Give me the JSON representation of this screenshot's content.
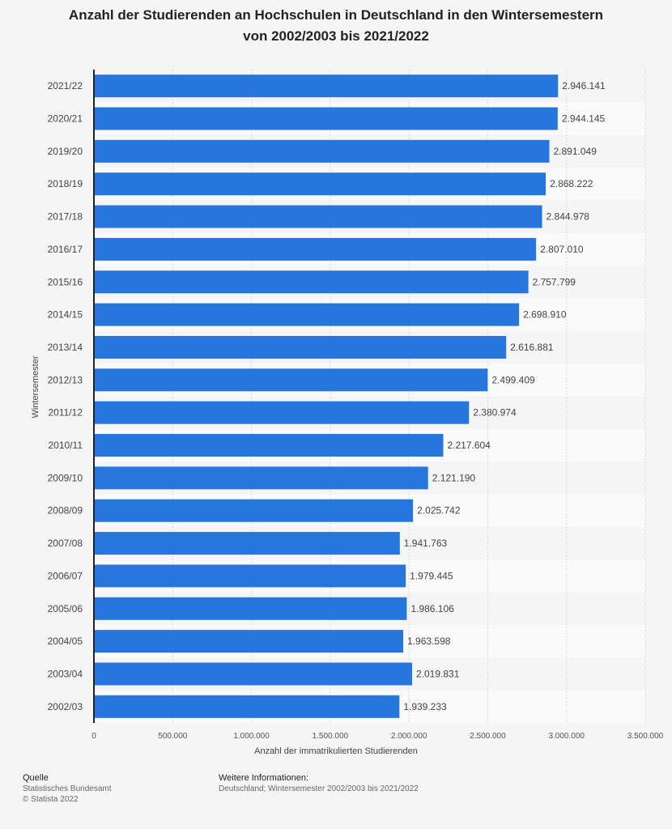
{
  "title": {
    "line1": "Anzahl der Studierenden an Hochschulen in Deutschland in den Wintersemestern",
    "line2": "von 2002/2003 bis 2021/2022"
  },
  "chart_data": {
    "type": "bar",
    "orientation": "horizontal",
    "categories": [
      "2021/22",
      "2020/21",
      "2019/20",
      "2018/19",
      "2017/18",
      "2016/17",
      "2015/16",
      "2014/15",
      "2013/14",
      "2012/13",
      "2011/12",
      "2010/11",
      "2009/10",
      "2008/09",
      "2007/08",
      "2006/07",
      "2005/06",
      "2004/05",
      "2003/04",
      "2002/03"
    ],
    "values": [
      2946141,
      2944145,
      2891049,
      2868222,
      2844978,
      2807010,
      2757799,
      2698910,
      2616881,
      2499409,
      2380974,
      2217604,
      2121190,
      2025742,
      1941763,
      1979445,
      1986106,
      1963598,
      2019831,
      1939233
    ],
    "value_labels": [
      "2.946.141",
      "2.944.145",
      "2.891.049",
      "2.868.222",
      "2.844.978",
      "2.807.010",
      "2.757.799",
      "2.698.910",
      "2.616.881",
      "2.499.409",
      "2.380.974",
      "2.217.604",
      "2.121.190",
      "2.025.742",
      "1.941.763",
      "1.979.445",
      "1.986.106",
      "1.963.598",
      "2.019.831",
      "1.939.233"
    ],
    "xlabel": "Anzahl der immatrikulierten Studierenden",
    "ylabel": "Wintersemester",
    "xlim": [
      0,
      3500000
    ],
    "x_ticks": [
      0,
      500000,
      1000000,
      1500000,
      2000000,
      2500000,
      3000000,
      3500000
    ],
    "x_tick_labels": [
      "0",
      "500.000",
      "1.000.000",
      "1.500.000",
      "2.000.000",
      "2.500.000",
      "3.000.000",
      "3.500.000"
    ],
    "grid": true,
    "colors": {
      "bar": "#2776dd",
      "band_a": "#f5f5f5",
      "band_b": "#fafafa",
      "grid": "#d9d9d9"
    }
  },
  "footer": {
    "source_heading": "Quelle",
    "source_line1": "Statistisches Bundesamt",
    "source_line2": "© Statista 2022",
    "info_heading": "Weitere Informationen:",
    "info_line1": "Deutschland; Wintersemester 2002/2003 bis 2021/2022"
  }
}
